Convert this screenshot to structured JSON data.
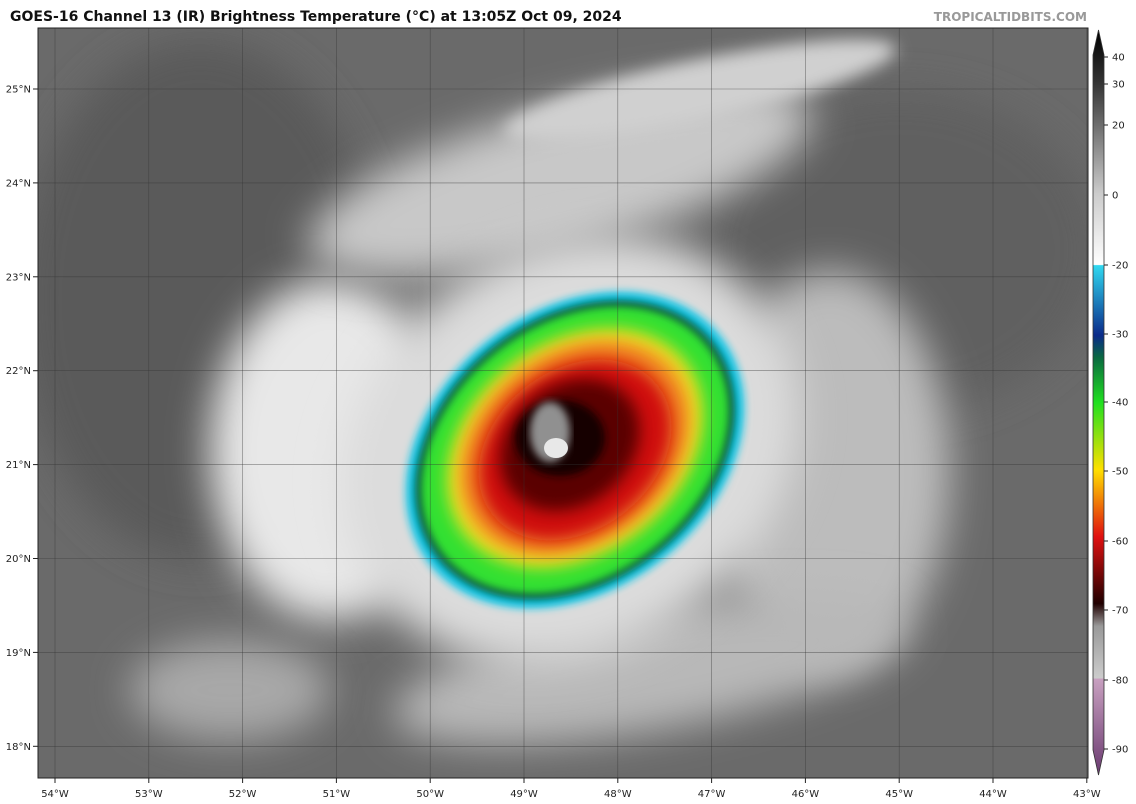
{
  "title": "GOES-16 Channel 13 (IR) Brightness Temperature (°C) at 13:05Z Oct 09, 2024",
  "credit": "TROPICALTIDBITS.COM",
  "lon_labels": [
    "54°W",
    "53°W",
    "52°W",
    "51°W",
    "50°W",
    "49°W",
    "48°W",
    "47°W",
    "46°W",
    "45°W",
    "44°W",
    "43°W"
  ],
  "lat_labels": [
    "25°N",
    "24°N",
    "23°N",
    "22°N",
    "21°N",
    "20°N",
    "19°N",
    "18°N"
  ],
  "colorbar_ticks": [
    40,
    30,
    20,
    0,
    -20,
    -30,
    -40,
    -50,
    -60,
    -70,
    -80,
    -90
  ]
}
